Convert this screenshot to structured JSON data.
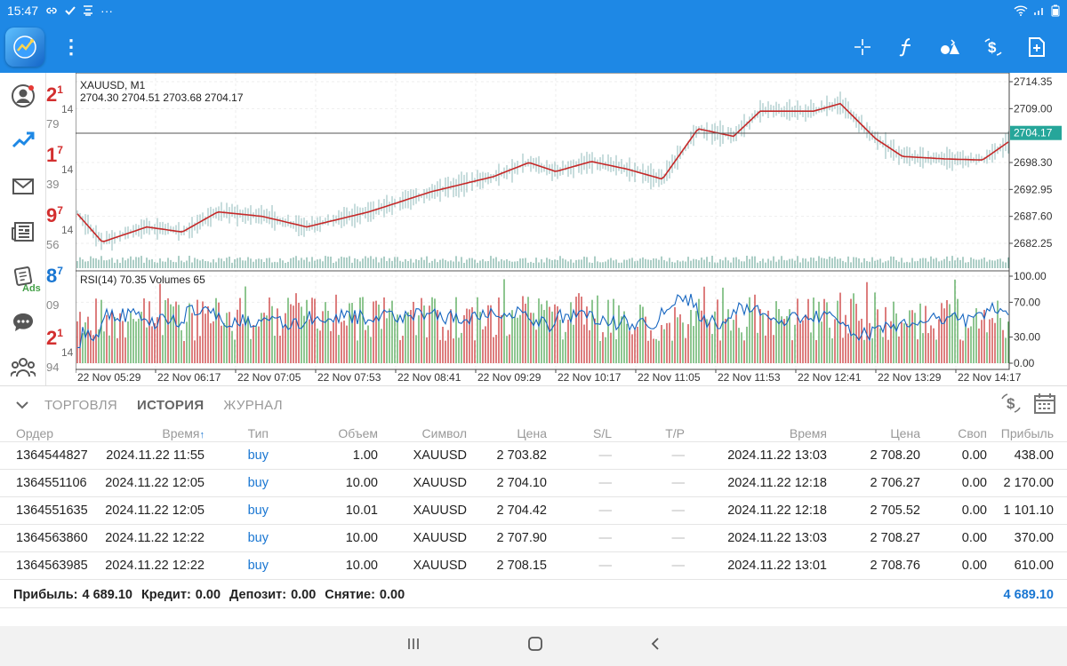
{
  "status": {
    "time": "15:47",
    "notif_icons": [
      "link-icon",
      "check-icon",
      "ocr-icon",
      "more-icon"
    ],
    "dots": "···"
  },
  "toolbar": {
    "menu": "⋮",
    "icons": [
      "crosshair-icon",
      "indicators-icon",
      "objects-icon",
      "quick-trade-icon",
      "new-order-icon"
    ]
  },
  "quotes": [
    {
      "big": "2",
      "sup": "1",
      "small": "14",
      "sub": "79",
      "color": "#d32f2f"
    },
    {
      "big": "1",
      "sup": "7",
      "small": "14",
      "sub": "39",
      "color": "#d32f2f"
    },
    {
      "big": "9",
      "sup": "7",
      "small": "14",
      "sub": "56",
      "color": "#d32f2f"
    },
    {
      "big": "8",
      "sup": "7",
      "small": "",
      "sub": "09",
      "color": "#1976d2"
    },
    {
      "big": "2",
      "sup": "1",
      "small": "14",
      "sub": "94",
      "color": "#d32f2f"
    }
  ],
  "ads_label": "Ads",
  "chart": {
    "symbol_title": "XAUUSD, M1",
    "ohlc": "2704.30 2704.51 2703.68 2704.17",
    "price_ticks": [
      "2714.35",
      "2709.00",
      "2704.17",
      "2698.30",
      "2692.95",
      "2687.60",
      "2682.25"
    ],
    "current_price": "2704.17",
    "rsi_label": "RSI(14) 70.35 Volumes 65",
    "rsi_ticks": [
      "100.00",
      "70.00",
      "30.00",
      "0.00"
    ],
    "time_labels": [
      "22 Nov 05:29",
      "22 Nov 06:17",
      "22 Nov 07:05",
      "22 Nov 07:53",
      "22 Nov 08:41",
      "22 Nov 09:29",
      "22 Nov 10:17",
      "22 Nov 11:05",
      "22 Nov 11:53",
      "22 Nov 12:41",
      "22 Nov 13:29",
      "22 Nov 14:17"
    ],
    "colors": {
      "ma": "#c62828",
      "rsi": "#1565c0",
      "vol_up": "#43a047",
      "vol_down": "#c62828",
      "price_tag": "#26a69a"
    }
  },
  "tabs": [
    {
      "label": "ТОРГОВЛЯ",
      "active": false
    },
    {
      "label": "ИСТОРИЯ",
      "active": true
    },
    {
      "label": "ЖУРНАЛ",
      "active": false
    }
  ],
  "table": {
    "headers": [
      "Ордер",
      "Время",
      "Тип",
      "Объем",
      "Символ",
      "Цена",
      "S/L",
      "T/P",
      "Время",
      "Цена",
      "Своп",
      "Прибыль"
    ],
    "sort_arrow": "↑",
    "rows": [
      [
        "1364544827",
        "2024.11.22 11:55",
        "buy",
        "1.00",
        "XAUUSD",
        "2 703.82",
        "—",
        "—",
        "2024.11.22 13:03",
        "2 708.20",
        "0.00",
        "438.00"
      ],
      [
        "1364551106",
        "2024.11.22 12:05",
        "buy",
        "10.00",
        "XAUUSD",
        "2 704.10",
        "—",
        "—",
        "2024.11.22 12:18",
        "2 706.27",
        "0.00",
        "2 170.00"
      ],
      [
        "1364551635",
        "2024.11.22 12:05",
        "buy",
        "10.01",
        "XAUUSD",
        "2 704.42",
        "—",
        "—",
        "2024.11.22 12:18",
        "2 705.52",
        "0.00",
        "1 101.10"
      ],
      [
        "1364563860",
        "2024.11.22 12:22",
        "buy",
        "10.00",
        "XAUUSD",
        "2 707.90",
        "—",
        "—",
        "2024.11.22 13:03",
        "2 708.27",
        "0.00",
        "370.00"
      ],
      [
        "1364563985",
        "2024.11.22 12:22",
        "buy",
        "10.00",
        "XAUUSD",
        "2 708.15",
        "—",
        "—",
        "2024.11.22 13:01",
        "2 708.76",
        "0.00",
        "610.00"
      ]
    ]
  },
  "summary": {
    "profit_label": "Прибыль:",
    "profit": "4 689.10",
    "credit_label": "Кредит:",
    "credit": "0.00",
    "deposit_label": "Депозит:",
    "deposit": "0.00",
    "withdraw_label": "Снятие:",
    "withdraw": "0.00",
    "total": "4 689.10"
  }
}
